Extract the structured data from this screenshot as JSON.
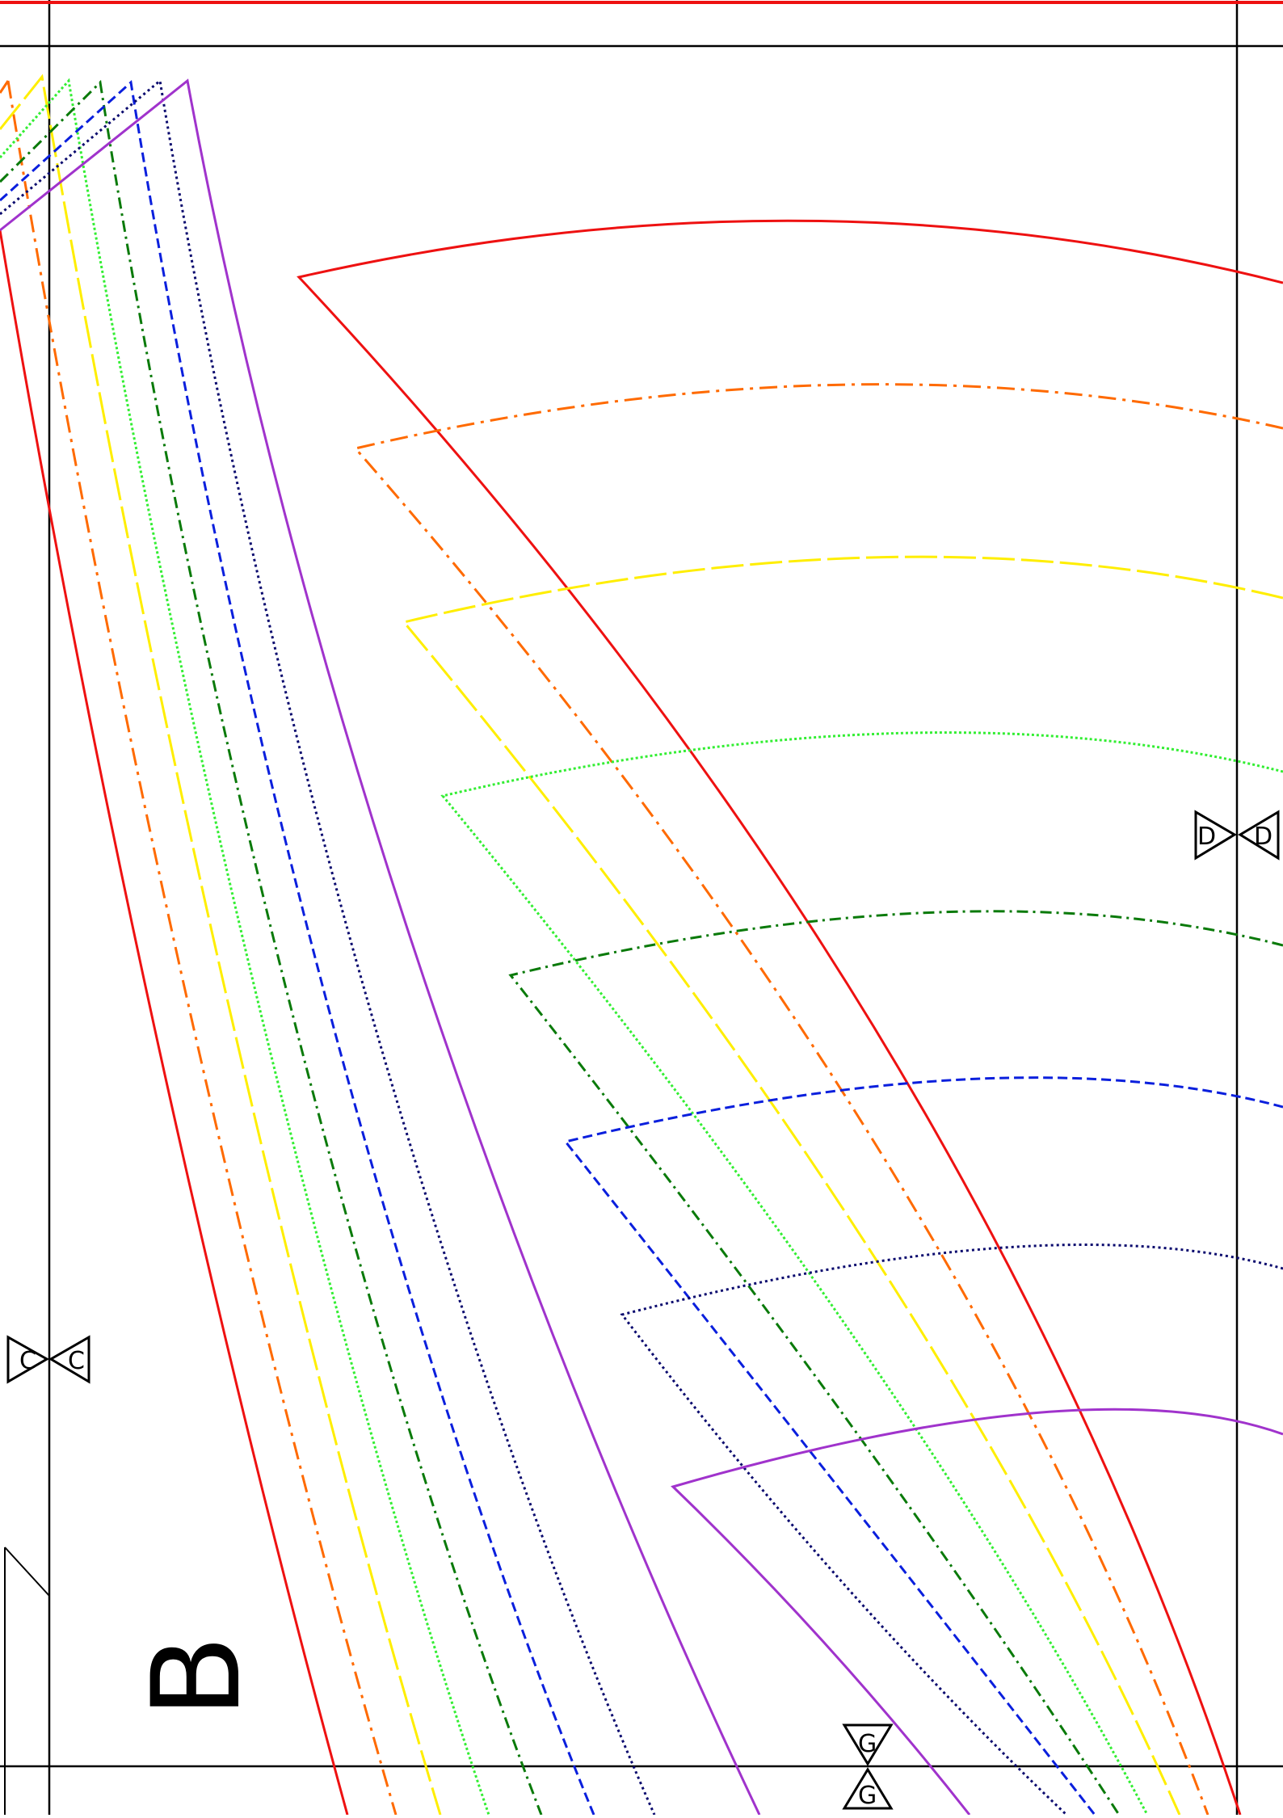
{
  "page": {
    "background": "#ffffff",
    "piece_label": "B"
  },
  "notches": {
    "c_left": "C",
    "c_right": "C",
    "d_left": "D",
    "d_right": "D",
    "g_top": "G",
    "g_bottom": "G"
  },
  "sizes": [
    {
      "key": "red",
      "color": "#ee1111",
      "style": "solid"
    },
    {
      "key": "orange",
      "color": "#ff6a00",
      "style": "dash-dot"
    },
    {
      "key": "yellow",
      "color": "#ffee00",
      "style": "long-dash"
    },
    {
      "key": "lightgreen",
      "color": "#33ee33",
      "style": "dotted"
    },
    {
      "key": "darkgreen",
      "color": "#0a7a0a",
      "style": "dash-dot"
    },
    {
      "key": "blue",
      "color": "#0a1fdd",
      "style": "dashed"
    },
    {
      "key": "navy",
      "color": "#0a0a6e",
      "style": "dotted"
    },
    {
      "key": "purple",
      "color": "#a033cc",
      "style": "solid"
    }
  ]
}
